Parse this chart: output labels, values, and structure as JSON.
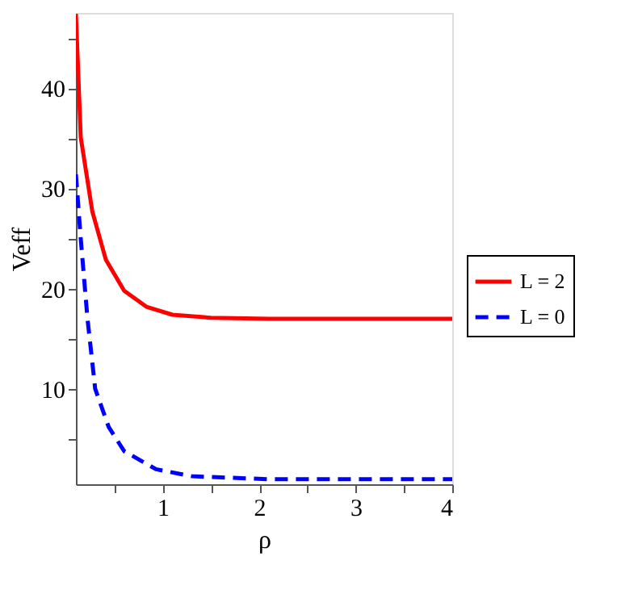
{
  "chart_data": {
    "type": "line",
    "xlabel": "ρ",
    "ylabel": "Veff",
    "xlim": [
      0.1,
      4
    ],
    "ylim": [
      0.5,
      47.5
    ],
    "xticks": [
      {
        "value": 0.5,
        "label": null
      },
      1,
      {
        "value": 1.5,
        "label": null
      },
      2,
      {
        "value": 2.5,
        "label": null
      },
      3,
      {
        "value": 3.5,
        "label": null
      },
      4
    ],
    "yticks": [
      {
        "value": 5,
        "label": null
      },
      10,
      {
        "value": 15,
        "label": null
      },
      20,
      {
        "value": 25,
        "label": null
      },
      30,
      {
        "value": 35,
        "label": null
      },
      40,
      {
        "value": 45,
        "label": null
      }
    ],
    "grid": false,
    "legend": "right",
    "marker": "none",
    "series": [
      {
        "name": "L = 2",
        "color": "#ff0000",
        "line_style": "solid",
        "x": [
          0.1,
          0.15,
          0.27,
          0.41,
          0.6,
          0.83,
          1.1,
          1.5,
          2.1,
          3,
          4
        ],
        "values": [
          47.4,
          35.1,
          27.7,
          22.9,
          19.8,
          18.2,
          17.4,
          17.1,
          17.0,
          17.0,
          17.0
        ]
      },
      {
        "name": "L = 0",
        "color": "#0000ff",
        "line_style": "dashed",
        "x": [
          0.1,
          0.15,
          0.22,
          0.3,
          0.44,
          0.6,
          0.93,
          1.3,
          2.1,
          3,
          4
        ],
        "values": [
          31.4,
          25,
          17,
          10,
          6.2,
          3.8,
          2.0,
          1.3,
          1.0,
          1.0,
          1.0
        ]
      }
    ]
  }
}
